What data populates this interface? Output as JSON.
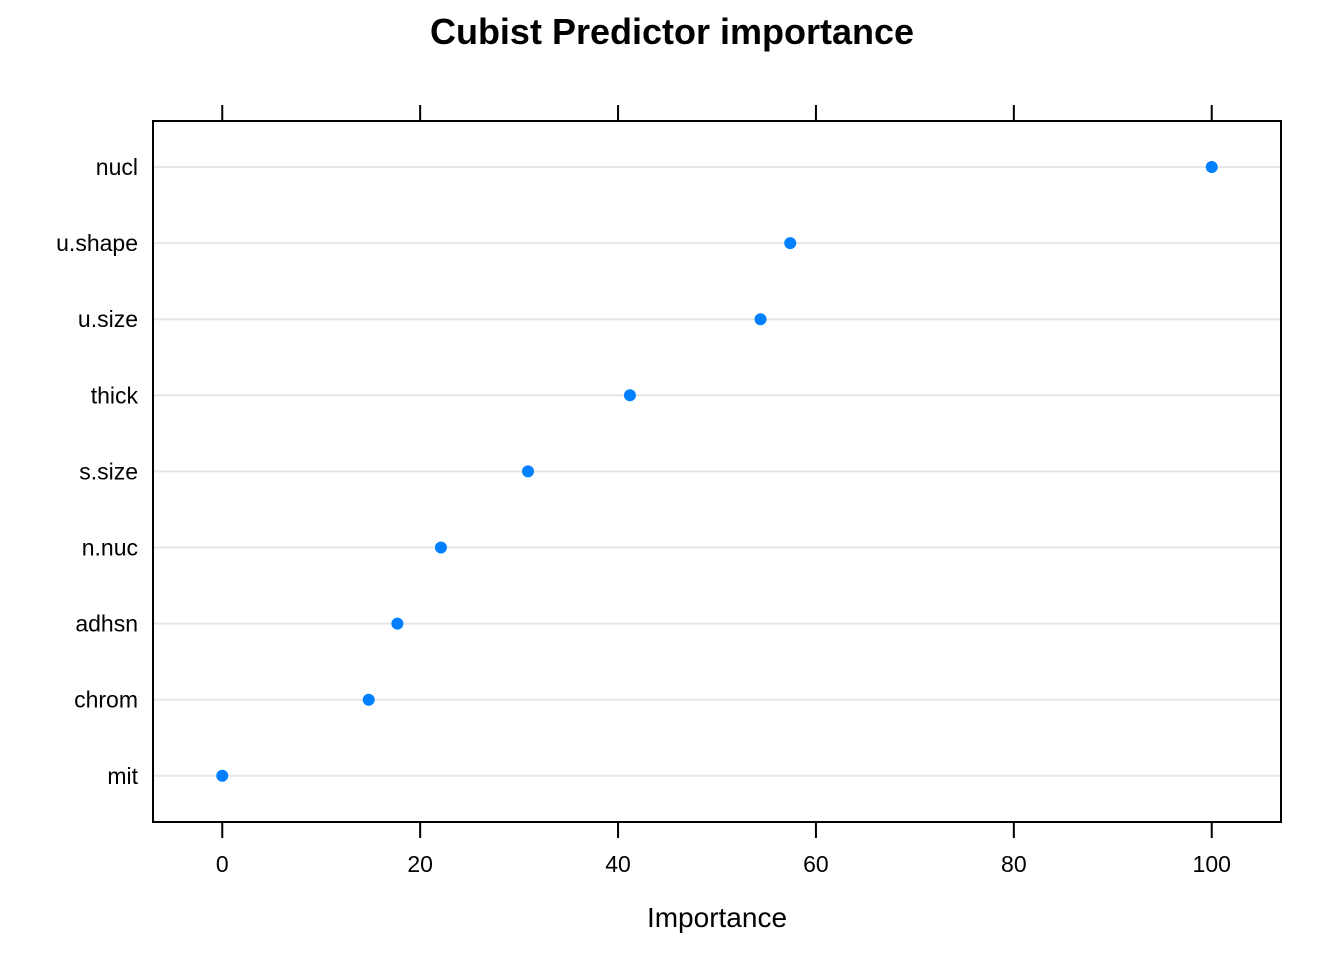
{
  "chart_data": {
    "type": "scatter",
    "title": "Cubist Predictor importance",
    "xlabel": "Importance",
    "ylabel": "",
    "xlim": [
      -7,
      107
    ],
    "xticks": [
      0,
      20,
      40,
      60,
      80,
      100
    ],
    "grid": true,
    "categories": [
      "nucl",
      "u.shape",
      "u.size",
      "thick",
      "s.size",
      "n.nuc",
      "adhsn",
      "chrom",
      "mit"
    ],
    "values": [
      100,
      57.4,
      54.4,
      41.2,
      30.9,
      22.1,
      17.7,
      14.8,
      0
    ],
    "colors": {
      "point": "#0080ff",
      "grid": "#e6e6e6",
      "frame": "#000000"
    }
  }
}
